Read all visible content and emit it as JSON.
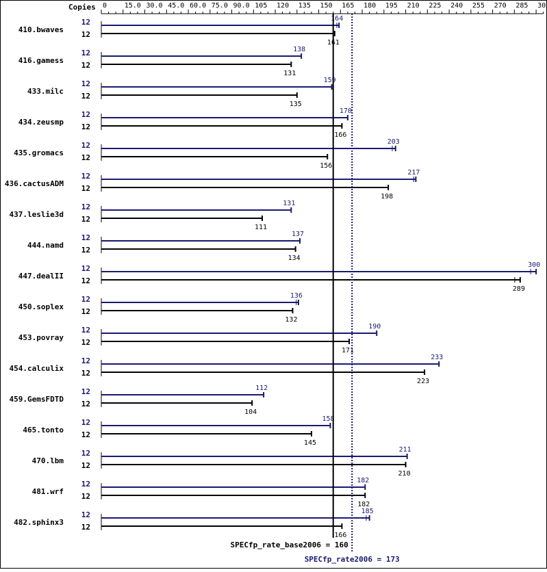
{
  "chart_data": {
    "type": "bar",
    "orientation": "horizontal",
    "x_axis_header": "Copies",
    "x_ticks": [
      "0",
      "15.0",
      "30.0",
      "45.0",
      "60.0",
      "75.0",
      "90.0",
      "105",
      "120",
      "135",
      "150",
      "165",
      "180",
      "195",
      "210",
      "225",
      "240",
      "255",
      "270",
      "285",
      "300"
    ],
    "xlim": [
      0,
      305
    ],
    "categories": [
      "410.bwaves",
      "416.gamess",
      "433.milc",
      "434.zeusmp",
      "435.gromacs",
      "436.cactusADM",
      "437.leslie3d",
      "444.namd",
      "447.dealII",
      "450.soplex",
      "453.povray",
      "454.calculix",
      "459.GemsFDTD",
      "465.tonto",
      "470.lbm",
      "481.wrf",
      "482.sphinx3"
    ],
    "series": [
      {
        "key": "peak",
        "color": "#191970",
        "copies": [
          "12",
          "12",
          "12",
          "12",
          "12",
          "12",
          "12",
          "12",
          "12",
          "12",
          "12",
          "12",
          "12",
          "12",
          "12",
          "12",
          "12"
        ],
        "values": [
          164,
          138,
          159,
          170,
          203,
          217,
          131,
          137,
          300,
          136,
          190,
          233,
          112,
          158,
          211,
          182,
          185
        ],
        "labels": [
          "164",
          "138",
          "159",
          "170",
          "203",
          "217",
          "131",
          "137",
          "300",
          "136",
          "190",
          "233",
          "112",
          "158",
          "211",
          "182",
          "185"
        ]
      },
      {
        "key": "base",
        "color": "#000000",
        "copies": [
          "12",
          "12",
          "12",
          "12",
          "12",
          "12",
          "12",
          "12",
          "12",
          "12",
          "12",
          "12",
          "12",
          "12",
          "12",
          "12",
          "12"
        ],
        "values": [
          161,
          131,
          135,
          166,
          156,
          198,
          111,
          134,
          289,
          132,
          171,
          223,
          104,
          145,
          210,
          182,
          166
        ],
        "labels": [
          "161",
          "131",
          "135",
          "166",
          "156",
          "198",
          "111",
          "134",
          "289",
          "132",
          "171",
          "223",
          "104",
          "145",
          "210",
          "182",
          "166"
        ]
      }
    ],
    "reference_lines": [
      {
        "key": "base",
        "value": 160,
        "label": "SPECfp_rate_base2006 = 160",
        "color": "#000000",
        "style": "solid"
      },
      {
        "key": "peak",
        "value": 173,
        "label": "SPECfp_rate2006 = 173",
        "color": "#191970",
        "style": "dotted"
      }
    ]
  }
}
